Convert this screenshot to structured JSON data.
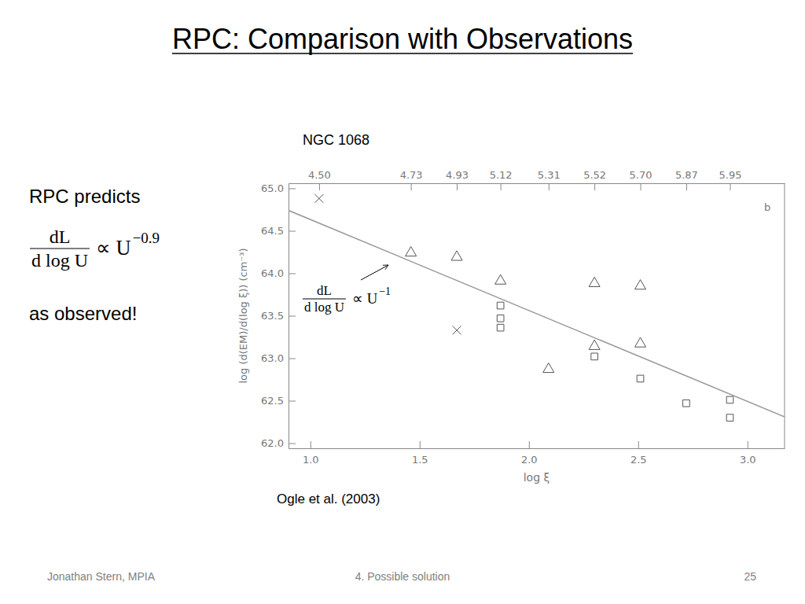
{
  "slide": {
    "title": "RPC: Comparison with Observations",
    "left_text": {
      "intro": "RPC predicts",
      "formula": {
        "numerator": "dL",
        "denominator": "d log U",
        "relation": "∝ U",
        "exponent": "−0.9"
      },
      "conclusion": "as observed!"
    },
    "footer": {
      "author": "Jonathan Stern, MPIA",
      "section": "4. Possible solution",
      "page": 25
    }
  },
  "chart_data": {
    "type": "scatter",
    "title": "NGC 1068",
    "source": "Ogle et al. (2003)",
    "x_label": "log ξ",
    "y_label": "log (d(EM)/d(log ξ)) (cm⁻³)",
    "xlim": [
      0.9,
      3.17
    ],
    "ylim": [
      61.94,
      65.06
    ],
    "xticks": [
      {
        "value": 1.0,
        "label": "1.0"
      },
      {
        "value": 1.5,
        "label": "1.5"
      },
      {
        "value": 2.0,
        "label": "2.0"
      },
      {
        "value": 2.5,
        "label": "2.5"
      },
      {
        "value": 3.0,
        "label": "3.0"
      }
    ],
    "x2ticks": [
      {
        "value": 1.04,
        "label": "4.50"
      },
      {
        "value": 1.46,
        "label": "4.73"
      },
      {
        "value": 1.67,
        "label": "4.93"
      },
      {
        "value": 1.87,
        "label": "5.12"
      },
      {
        "value": 2.09,
        "label": "5.31"
      },
      {
        "value": 2.3,
        "label": "5.52"
      },
      {
        "value": 2.51,
        "label": "5.70"
      },
      {
        "value": 2.72,
        "label": "5.87"
      },
      {
        "value": 2.92,
        "label": "5.95"
      }
    ],
    "yticks": [
      {
        "value": 62.0,
        "label": "62.0"
      },
      {
        "value": 62.5,
        "label": "62.5"
      },
      {
        "value": 63.0,
        "label": "63.0"
      },
      {
        "value": 63.5,
        "label": "63.5"
      },
      {
        "value": 64.0,
        "label": "64.0"
      },
      {
        "value": 64.5,
        "label": "64.5"
      },
      {
        "value": 65.0,
        "label": "65.0"
      }
    ],
    "series": [
      {
        "type": "scatter",
        "marker": "x",
        "color": "#555555",
        "x": [
          1.04,
          1.67
        ],
        "values": [
          64.88,
          63.33
        ]
      },
      {
        "type": "scatter",
        "marker": "triangle",
        "color": "#555555",
        "x": [
          1.46,
          1.67,
          1.87,
          2.09,
          2.3,
          2.3,
          2.51,
          2.51
        ],
        "values": [
          64.24,
          64.19,
          63.91,
          62.87,
          63.88,
          63.14,
          63.85,
          63.17
        ]
      },
      {
        "type": "scatter",
        "marker": "square",
        "color": "#555555",
        "x": [
          1.87,
          1.87,
          1.87,
          2.3,
          2.51,
          2.72,
          2.92,
          2.92
        ],
        "values": [
          63.62,
          63.47,
          63.36,
          63.02,
          62.76,
          62.47,
          62.51,
          62.3
        ]
      },
      {
        "type": "line",
        "line_style": "solid",
        "color": "#999999",
        "x": [
          0.9,
          3.17
        ],
        "values": [
          64.74,
          62.31
        ]
      }
    ],
    "annotations": {
      "panel_label": "b",
      "line_formula": {
        "numerator": "dL",
        "denominator": "d log U",
        "relation": "∝ U",
        "exponent": "−1"
      }
    }
  }
}
